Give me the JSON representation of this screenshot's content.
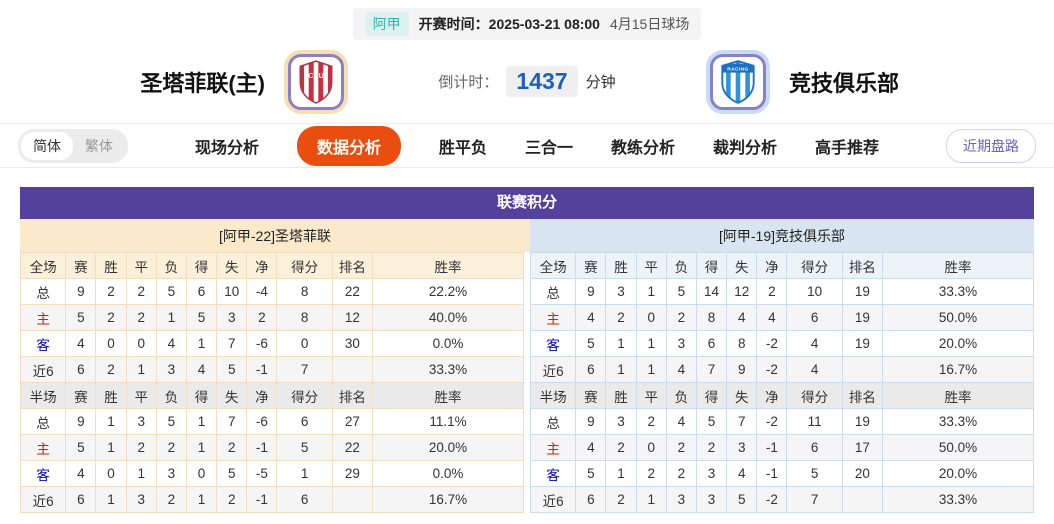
{
  "top_bar": {
    "league_badge": "阿甲",
    "kickoff": "开赛时间：2025-03-21 08:00",
    "venue": "4月15日球场"
  },
  "header": {
    "home_team": "圣塔菲联(主)",
    "home_logo_text": "CAU",
    "away_team": "竞技俱乐部",
    "away_logo_text": "RACING",
    "countdown_label": "倒计时：",
    "countdown_value": "1437",
    "countdown_unit": "分钟"
  },
  "nav": {
    "lang_toggle": [
      {
        "label": "简体",
        "active": true
      },
      {
        "label": "繁体",
        "active": false
      }
    ],
    "tabs": [
      {
        "label": "现场分析",
        "active": false
      },
      {
        "label": "数据分析",
        "active": true
      },
      {
        "label": "胜平负",
        "active": false
      },
      {
        "label": "三合一",
        "active": false
      },
      {
        "label": "教练分析",
        "active": false
      },
      {
        "label": "裁判分析",
        "active": false
      },
      {
        "label": "高手推荐",
        "active": false
      }
    ],
    "pill_button": "近期盘路"
  },
  "league_table": {
    "title": "联赛积分",
    "home": {
      "subtitle": "[阿甲-22]圣塔菲联",
      "full": {
        "header": [
          "全场",
          "赛",
          "胜",
          "平",
          "负",
          "得",
          "失",
          "净",
          "得分",
          "排名",
          "胜率"
        ],
        "rows": [
          {
            "label": "总",
            "type": "total",
            "cells": [
              "9",
              "2",
              "2",
              "5",
              "6",
              "10",
              "-4",
              "8",
              "22",
              "22.2%"
            ]
          },
          {
            "label": "主",
            "type": "home",
            "cells": [
              "5",
              "2",
              "2",
              "1",
              "5",
              "3",
              "2",
              "8",
              "12",
              "40.0%"
            ]
          },
          {
            "label": "客",
            "type": "away",
            "cells": [
              "4",
              "0",
              "0",
              "4",
              "1",
              "7",
              "-6",
              "0",
              "30",
              "0.0%"
            ]
          },
          {
            "label": "近6",
            "type": "recent",
            "cells": [
              "6",
              "2",
              "1",
              "3",
              "4",
              "5",
              "-1",
              "7",
              "",
              "33.3%"
            ]
          }
        ]
      },
      "half": {
        "header": [
          "半场",
          "赛",
          "胜",
          "平",
          "负",
          "得",
          "失",
          "净",
          "得分",
          "排名",
          "胜率"
        ],
        "rows": [
          {
            "label": "总",
            "type": "total",
            "cells": [
              "9",
              "1",
              "3",
              "5",
              "1",
              "7",
              "-6",
              "6",
              "27",
              "11.1%"
            ]
          },
          {
            "label": "主",
            "type": "home",
            "cells": [
              "5",
              "1",
              "2",
              "2",
              "1",
              "2",
              "-1",
              "5",
              "22",
              "20.0%"
            ]
          },
          {
            "label": "客",
            "type": "away",
            "cells": [
              "4",
              "0",
              "1",
              "3",
              "0",
              "5",
              "-5",
              "1",
              "29",
              "0.0%"
            ]
          },
          {
            "label": "近6",
            "type": "recent",
            "cells": [
              "6",
              "1",
              "3",
              "2",
              "1",
              "2",
              "-1",
              "6",
              "",
              "16.7%"
            ]
          }
        ]
      }
    },
    "away": {
      "subtitle": "[阿甲-19]竞技俱乐部",
      "full": {
        "header": [
          "全场",
          "赛",
          "胜",
          "平",
          "负",
          "得",
          "失",
          "净",
          "得分",
          "排名",
          "胜率"
        ],
        "rows": [
          {
            "label": "总",
            "type": "total",
            "cells": [
              "9",
              "3",
              "1",
              "5",
              "14",
              "12",
              "2",
              "10",
              "19",
              "33.3%"
            ]
          },
          {
            "label": "主",
            "type": "home",
            "cells": [
              "4",
              "2",
              "0",
              "2",
              "8",
              "4",
              "4",
              "6",
              "19",
              "50.0%"
            ]
          },
          {
            "label": "客",
            "type": "away",
            "cells": [
              "5",
              "1",
              "1",
              "3",
              "6",
              "8",
              "-2",
              "4",
              "19",
              "20.0%"
            ]
          },
          {
            "label": "近6",
            "type": "recent",
            "cells": [
              "6",
              "1",
              "1",
              "4",
              "7",
              "9",
              "-2",
              "4",
              "",
              "16.7%"
            ]
          }
        ]
      },
      "half": {
        "header": [
          "半场",
          "赛",
          "胜",
          "平",
          "负",
          "得",
          "失",
          "净",
          "得分",
          "排名",
          "胜率"
        ],
        "rows": [
          {
            "label": "总",
            "type": "total",
            "cells": [
              "9",
              "3",
              "2",
              "4",
              "5",
              "7",
              "-2",
              "11",
              "19",
              "33.3%"
            ]
          },
          {
            "label": "主",
            "type": "home",
            "cells": [
              "4",
              "2",
              "0",
              "2",
              "2",
              "3",
              "-1",
              "6",
              "17",
              "50.0%"
            ]
          },
          {
            "label": "客",
            "type": "away",
            "cells": [
              "5",
              "1",
              "2",
              "2",
              "3",
              "4",
              "-1",
              "5",
              "20",
              "20.0%"
            ]
          },
          {
            "label": "近6",
            "type": "recent",
            "cells": [
              "6",
              "2",
              "1",
              "3",
              "3",
              "5",
              "-2",
              "7",
              "",
              "33.3%"
            ]
          }
        ]
      }
    }
  },
  "colors": {
    "accent": "#ea4e0e",
    "title_purple": "#54419b",
    "home_tint": "#fbe9cc",
    "home_head": "#fbf0da",
    "home_border": "#f2ddbf",
    "away_tint": "#d8e5f1",
    "away_head": "#ecf3f9",
    "away_border": "#c9ddee",
    "badge_teal": "#2fb5ac",
    "badge_bg": "#ddf2f0",
    "countdown_blue": "#1b5ec7",
    "red_label": "#cc2200",
    "blue_label": "#0000cc",
    "stripe": "#f5f5f5",
    "sec_half": "#eaeaea",
    "pill_purple": "#6c5fd3"
  }
}
